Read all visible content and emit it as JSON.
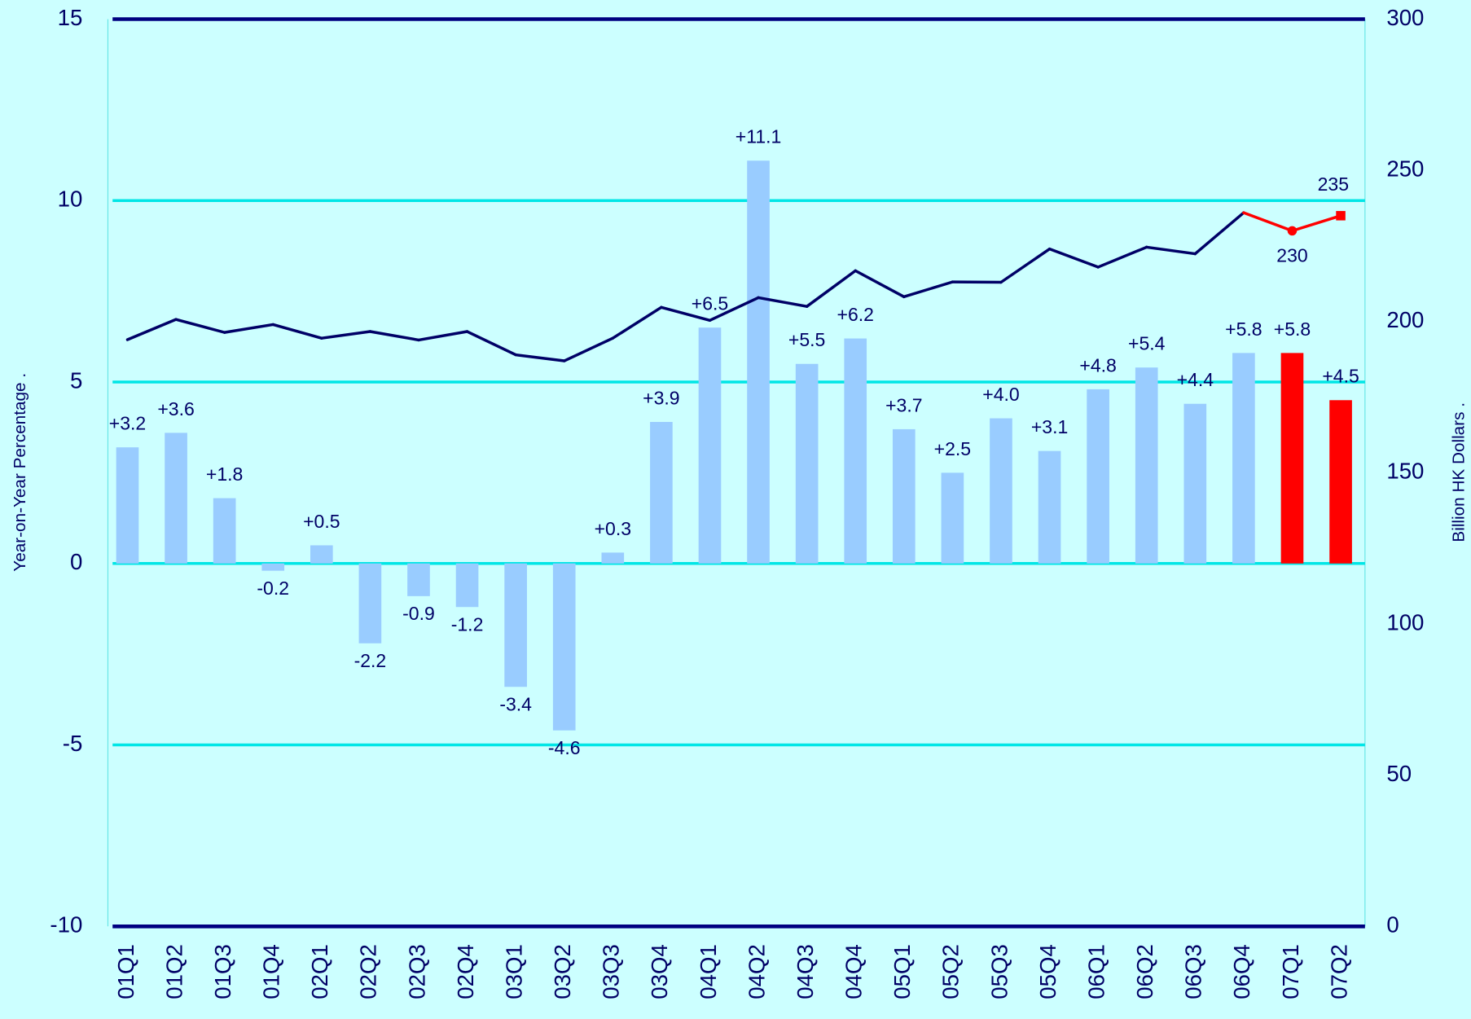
{
  "chart_data": {
    "type": "bar_line",
    "categories": [
      "01Q1",
      "01Q2",
      "01Q3",
      "01Q4",
      "02Q1",
      "02Q2",
      "02Q3",
      "02Q4",
      "03Q1",
      "03Q2",
      "03Q3",
      "03Q4",
      "04Q1",
      "04Q2",
      "04Q3",
      "04Q4",
      "05Q1",
      "05Q2",
      "05Q3",
      "05Q4",
      "06Q1",
      "06Q2",
      "06Q3",
      "06Q4",
      "07Q1",
      "07Q2"
    ],
    "y_label": "Year-on-Year Percentage   .",
    "y2_label": "Billion HK Dollars   .",
    "ylim": [
      -10,
      15
    ],
    "yticks": [
      -10,
      -5,
      0,
      5,
      10,
      15
    ],
    "y2lim": [
      0,
      300
    ],
    "y2ticks": [
      0,
      50,
      100,
      150,
      200,
      250,
      300
    ],
    "series": [
      {
        "type": "bar",
        "colors": [
          "#99ccff",
          "#99ccff",
          "#99ccff",
          "#99ccff",
          "#99ccff",
          "#99ccff",
          "#99ccff",
          "#99ccff",
          "#99ccff",
          "#99ccff",
          "#99ccff",
          "#99ccff",
          "#99ccff",
          "#99ccff",
          "#99ccff",
          "#99ccff",
          "#99ccff",
          "#99ccff",
          "#99ccff",
          "#99ccff",
          "#99ccff",
          "#99ccff",
          "#99ccff",
          "#99ccff",
          "#ff0000",
          "#ff0000"
        ],
        "values": [
          3.2,
          3.6,
          1.8,
          -0.2,
          0.5,
          -2.2,
          -0.9,
          -1.2,
          -3.4,
          -4.6,
          0.3,
          3.9,
          6.5,
          11.1,
          5.5,
          6.2,
          3.7,
          2.5,
          4.0,
          3.1,
          4.8,
          5.4,
          4.4,
          5.8,
          5.8,
          4.5
        ],
        "value_labels": [
          "+3.2",
          "+3.6",
          "+1.8",
          "-0.2",
          "+0.5",
          "-2.2",
          "-0.9",
          "-1.2",
          "-3.4",
          "-4.6",
          "+0.3",
          "+3.9",
          "+6.5",
          "+11.1",
          "+5.5",
          "+6.2",
          "+3.7",
          "+2.5",
          "+4.0",
          "+3.1",
          "+4.8",
          "+5.4",
          "+4.4",
          "+5.8",
          "+5.8",
          "+4.5"
        ]
      },
      {
        "type": "line",
        "axis": "y2",
        "colors": [
          "#000066",
          "#000066",
          "#000066",
          "#000066",
          "#000066",
          "#000066",
          "#000066",
          "#000066",
          "#000066",
          "#000066",
          "#000066",
          "#000066",
          "#000066",
          "#000066",
          "#000066",
          "#000066",
          "#000066",
          "#000066",
          "#000066",
          "#000066",
          "#000066",
          "#000066",
          "#000066",
          "#000066",
          "#ff0000",
          "#ff0000"
        ],
        "values": [
          194,
          200.7,
          196.4,
          199,
          194.5,
          196.7,
          193.9,
          196.7,
          189,
          187,
          194.5,
          204.7,
          200.4,
          207.9,
          205,
          216.8,
          208.2,
          213.1,
          213,
          224,
          218,
          224.6,
          222.4,
          236,
          230,
          235
        ],
        "value_labels": [
          null,
          null,
          null,
          null,
          null,
          null,
          null,
          null,
          null,
          null,
          null,
          null,
          null,
          null,
          null,
          null,
          null,
          null,
          null,
          null,
          null,
          null,
          null,
          null,
          "230",
          "235"
        ],
        "markers": [
          null,
          null,
          null,
          null,
          null,
          null,
          null,
          null,
          null,
          null,
          null,
          null,
          null,
          null,
          null,
          null,
          null,
          null,
          null,
          null,
          null,
          null,
          null,
          null,
          "circle",
          "square"
        ]
      }
    ]
  }
}
